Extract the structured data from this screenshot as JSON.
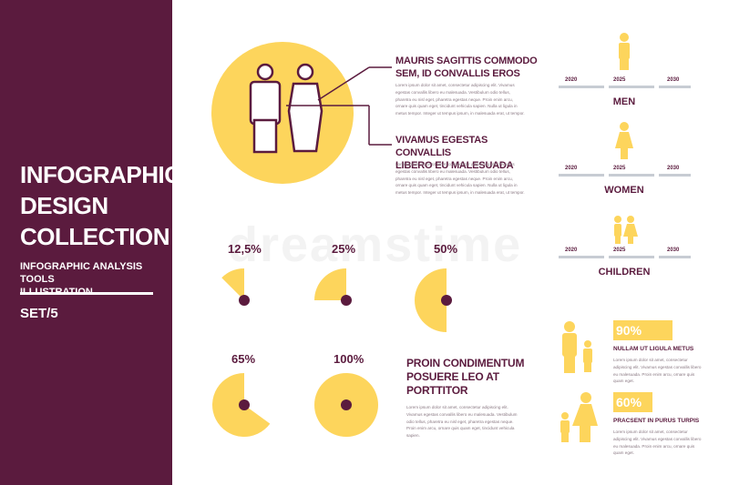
{
  "banner": {
    "title_lines": [
      "INFOGRAPHIC",
      "DESIGN",
      "COLLECTION"
    ],
    "subtitle_lines": [
      "INFOGRAPHIC ANALYSIS TOOLS",
      "ILLUSTRATION"
    ],
    "set": "SET/5"
  },
  "couple_section": {
    "heading1_lines": [
      "MAURIS SAGITTIS COMMODO",
      "SEM, ID CONVALLIS EROS"
    ],
    "text1": "Lorem ipsum dolor sit amet, consectetur adipiscing elit. Vivamus egestas convallis libero eu malesuada. Vestibulum odio tellus, pharetra eu nisl eget, pharetra egestas neque. Proin enim arcu, ornare quis quam eget, tincidunt vehicula sapien. Nulla ut ligula in metus tempor. Integer ut tempus ipsum, in malesuada erat, ut tempor.",
    "heading2_lines": [
      "VIVAMUS EGESTAS CONVALLIS",
      "LIBERO EU MALESUADA"
    ],
    "text2": "Lorem ipsum dolor sit amet, consectetur adipiscing elit. Vivamus egestas convallis libero eu malesuada. Vestibulum odio tellus, pharetra eu nisl eget, pharetra egestas neque. Proin enim arcu, ornare quis quam eget, tincidunt vehicula sapien. Nulla ut ligula in metus tempor. Integer ut tempus ipsum, in malesuada erat, ut tempor."
  },
  "pies": [
    {
      "label": "12,5%",
      "value": 12.5
    },
    {
      "label": "25%",
      "value": 25
    },
    {
      "label": "50%",
      "value": 50
    },
    {
      "label": "65%",
      "value": 65
    },
    {
      "label": "100%",
      "value": 100
    }
  ],
  "pie_block": {
    "heading_lines": [
      "PROIN CONDIMENTUM",
      "POSUERE LEO AT",
      "PORTTITOR"
    ],
    "text": "Lorem ipsum dolor sit amet, consectetur adipiscing elit. Vivamus egestas convallis libero eu malesuada. Vestibulum odio tellus, pharetra eu nisl eget, pharetra egestas neque. Proin enim arcu, ornare quis quam eget, tincidunt vehicula sapien."
  },
  "timelines": [
    {
      "years": [
        "2020",
        "2025",
        "2030"
      ],
      "label": "MEN",
      "figure": "man-icon"
    },
    {
      "years": [
        "2020",
        "2025",
        "2030"
      ],
      "label": "WOMEN",
      "figure": "woman-icon"
    },
    {
      "years": [
        "2020",
        "2025",
        "2030"
      ],
      "label": "CHILDREN",
      "figure": "children-icon"
    }
  ],
  "percent_bars": [
    {
      "label": "90%",
      "value": 90,
      "caption": "NULLAM UT LIGULA METUS",
      "text": "Lorem ipsum dolor sit amet, consectetur adipiscing elit. Vivamus egestas convallis libero eu malesuada. Proin enim arcu, ornare quis quam eget."
    },
    {
      "label": "60%",
      "value": 60,
      "caption": "PRACSENT IN PURUS TURPIS",
      "text": "Lorem ipsum dolor sit amet, consectetur adipiscing elit. Vivamus egestas convallis libero eu malesuada. Proin enim arcu, ornare quis quam eget."
    }
  ],
  "watermark": "dreamstime",
  "colors": {
    "plum": "#5b1b3e",
    "yellow": "#fdd55c",
    "rule": "#c7ccd3"
  }
}
